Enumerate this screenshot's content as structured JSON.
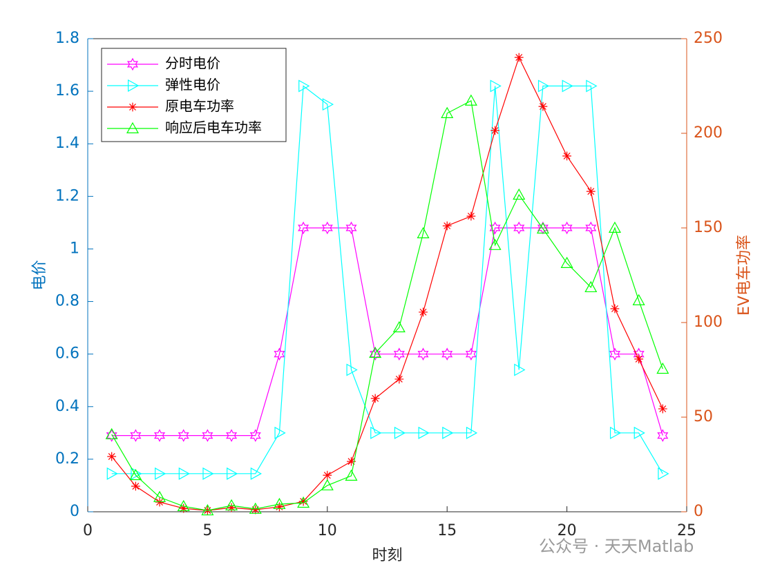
{
  "chart_data": {
    "type": "line",
    "x": [
      1,
      2,
      3,
      4,
      5,
      6,
      7,
      8,
      9,
      10,
      11,
      12,
      13,
      14,
      15,
      16,
      17,
      18,
      19,
      20,
      21,
      22,
      23,
      24
    ],
    "xlabel": "时刻",
    "ylabel": "电价",
    "y2label": "EV电车功率",
    "xlim": [
      0,
      25
    ],
    "xticks": [
      0,
      5,
      10,
      15,
      20,
      25
    ],
    "ylim": [
      0,
      1.8
    ],
    "yticks": [
      0,
      0.2,
      0.4,
      0.6,
      0.8,
      1,
      1.2,
      1.4,
      1.6,
      1.8
    ],
    "y2lim": [
      0,
      250
    ],
    "y2ticks": [
      0,
      50,
      100,
      150,
      200,
      250
    ],
    "y_color": "#0072bd",
    "y2_color": "#d95319",
    "series": [
      {
        "name": "分时电价",
        "color": "#ff00ff",
        "marker": "hexagram",
        "values": [
          0.29,
          0.29,
          0.29,
          0.29,
          0.29,
          0.29,
          0.29,
          0.6,
          1.08,
          1.08,
          1.08,
          0.6,
          0.6,
          0.6,
          0.6,
          0.6,
          1.08,
          1.08,
          1.08,
          1.08,
          1.08,
          0.6,
          0.6,
          0.29
        ]
      },
      {
        "name": "弹性电价",
        "color": "#00ffff",
        "marker": "triangle-right",
        "values": [
          0.145,
          0.145,
          0.145,
          0.145,
          0.145,
          0.145,
          0.145,
          0.3,
          1.62,
          1.55,
          0.54,
          0.3,
          0.3,
          0.3,
          0.3,
          0.3,
          1.62,
          0.54,
          1.62,
          1.62,
          1.62,
          0.3,
          0.3,
          0.145
        ]
      },
      {
        "name": "原电车功率",
        "color": "#ff0000",
        "marker": "asterisk",
        "axis": "y2",
        "values": [
          29.2,
          13.5,
          5.1,
          1.8,
          0.7,
          2.2,
          1.1,
          2.6,
          5.5,
          19.3,
          26.6,
          59.9,
          70.1,
          105.5,
          151.1,
          156.2,
          201.5,
          240.1,
          214.2,
          188.0,
          169.3,
          107.3,
          80.7,
          54.4
        ]
      },
      {
        "name": "响应后电车功率",
        "color": "#00ff00",
        "marker": "triangle-up",
        "axis": "y2",
        "values": [
          40.9,
          19.3,
          7.7,
          2.9,
          0.7,
          3.3,
          1.5,
          4.0,
          4.7,
          13.9,
          19.0,
          83.9,
          97.4,
          147.1,
          210.6,
          217.2,
          140.9,
          167.5,
          149.6,
          131.4,
          118.6,
          150.0,
          111.7,
          75.5
        ]
      }
    ],
    "watermark": "公众号 · 天天Matlab"
  }
}
